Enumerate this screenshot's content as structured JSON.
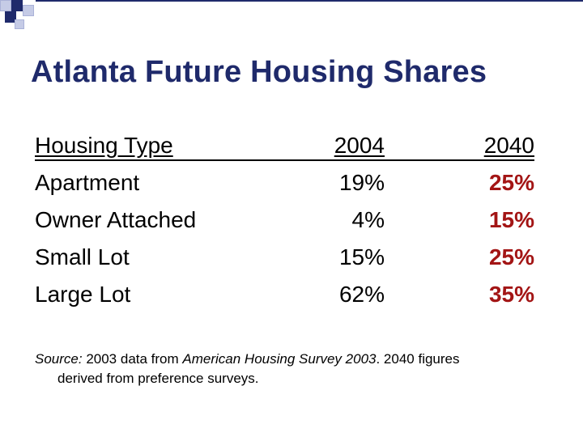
{
  "title": "Atlanta Future Housing Shares",
  "colors": {
    "title": "#1f2a6b",
    "accent_2040": "#a31515"
  },
  "table": {
    "headers": {
      "type": "Housing Type",
      "y2004": "2004",
      "y2040": "2040"
    },
    "rows": [
      {
        "type": "Apartment",
        "y2004": "19%",
        "y2040": "25%"
      },
      {
        "type": "Owner Attached",
        "y2004": "4%",
        "y2040": "15%"
      },
      {
        "type": "Small Lot",
        "y2004": "15%",
        "y2040": "25%"
      },
      {
        "type": "Large Lot",
        "y2004": "62%",
        "y2040": "35%"
      }
    ]
  },
  "source": {
    "label": "Source:",
    "text1": " 2003 data from ",
    "italic_title": "American Housing Survey 2003",
    "text2": ". 2040 figures",
    "line2": "derived from preference surveys."
  }
}
